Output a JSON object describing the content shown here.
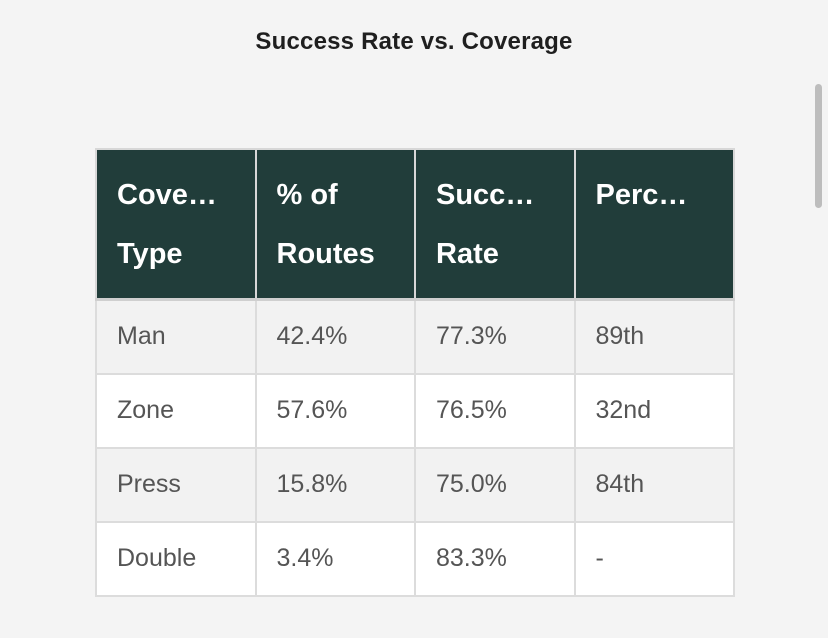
{
  "title": "Success Rate vs. Coverage",
  "table": {
    "headers": [
      [
        "Cove…",
        "Type"
      ],
      [
        "% of",
        "Routes"
      ],
      [
        "Succ…",
        "Rate"
      ],
      [
        "Perc…",
        ""
      ]
    ],
    "rows": [
      [
        "Man",
        "42.4%",
        "77.3%",
        "89th"
      ],
      [
        "Zone",
        "57.6%",
        "76.5%",
        "32nd"
      ],
      [
        "Press",
        "15.8%",
        "75.0%",
        "84th"
      ],
      [
        "Double",
        "3.4%",
        "83.3%",
        "-"
      ]
    ]
  },
  "colors": {
    "header_bg": "#213d3a",
    "header_text": "#ffffff",
    "body_text": "#555555",
    "page_bg": "#f4f4f4"
  }
}
